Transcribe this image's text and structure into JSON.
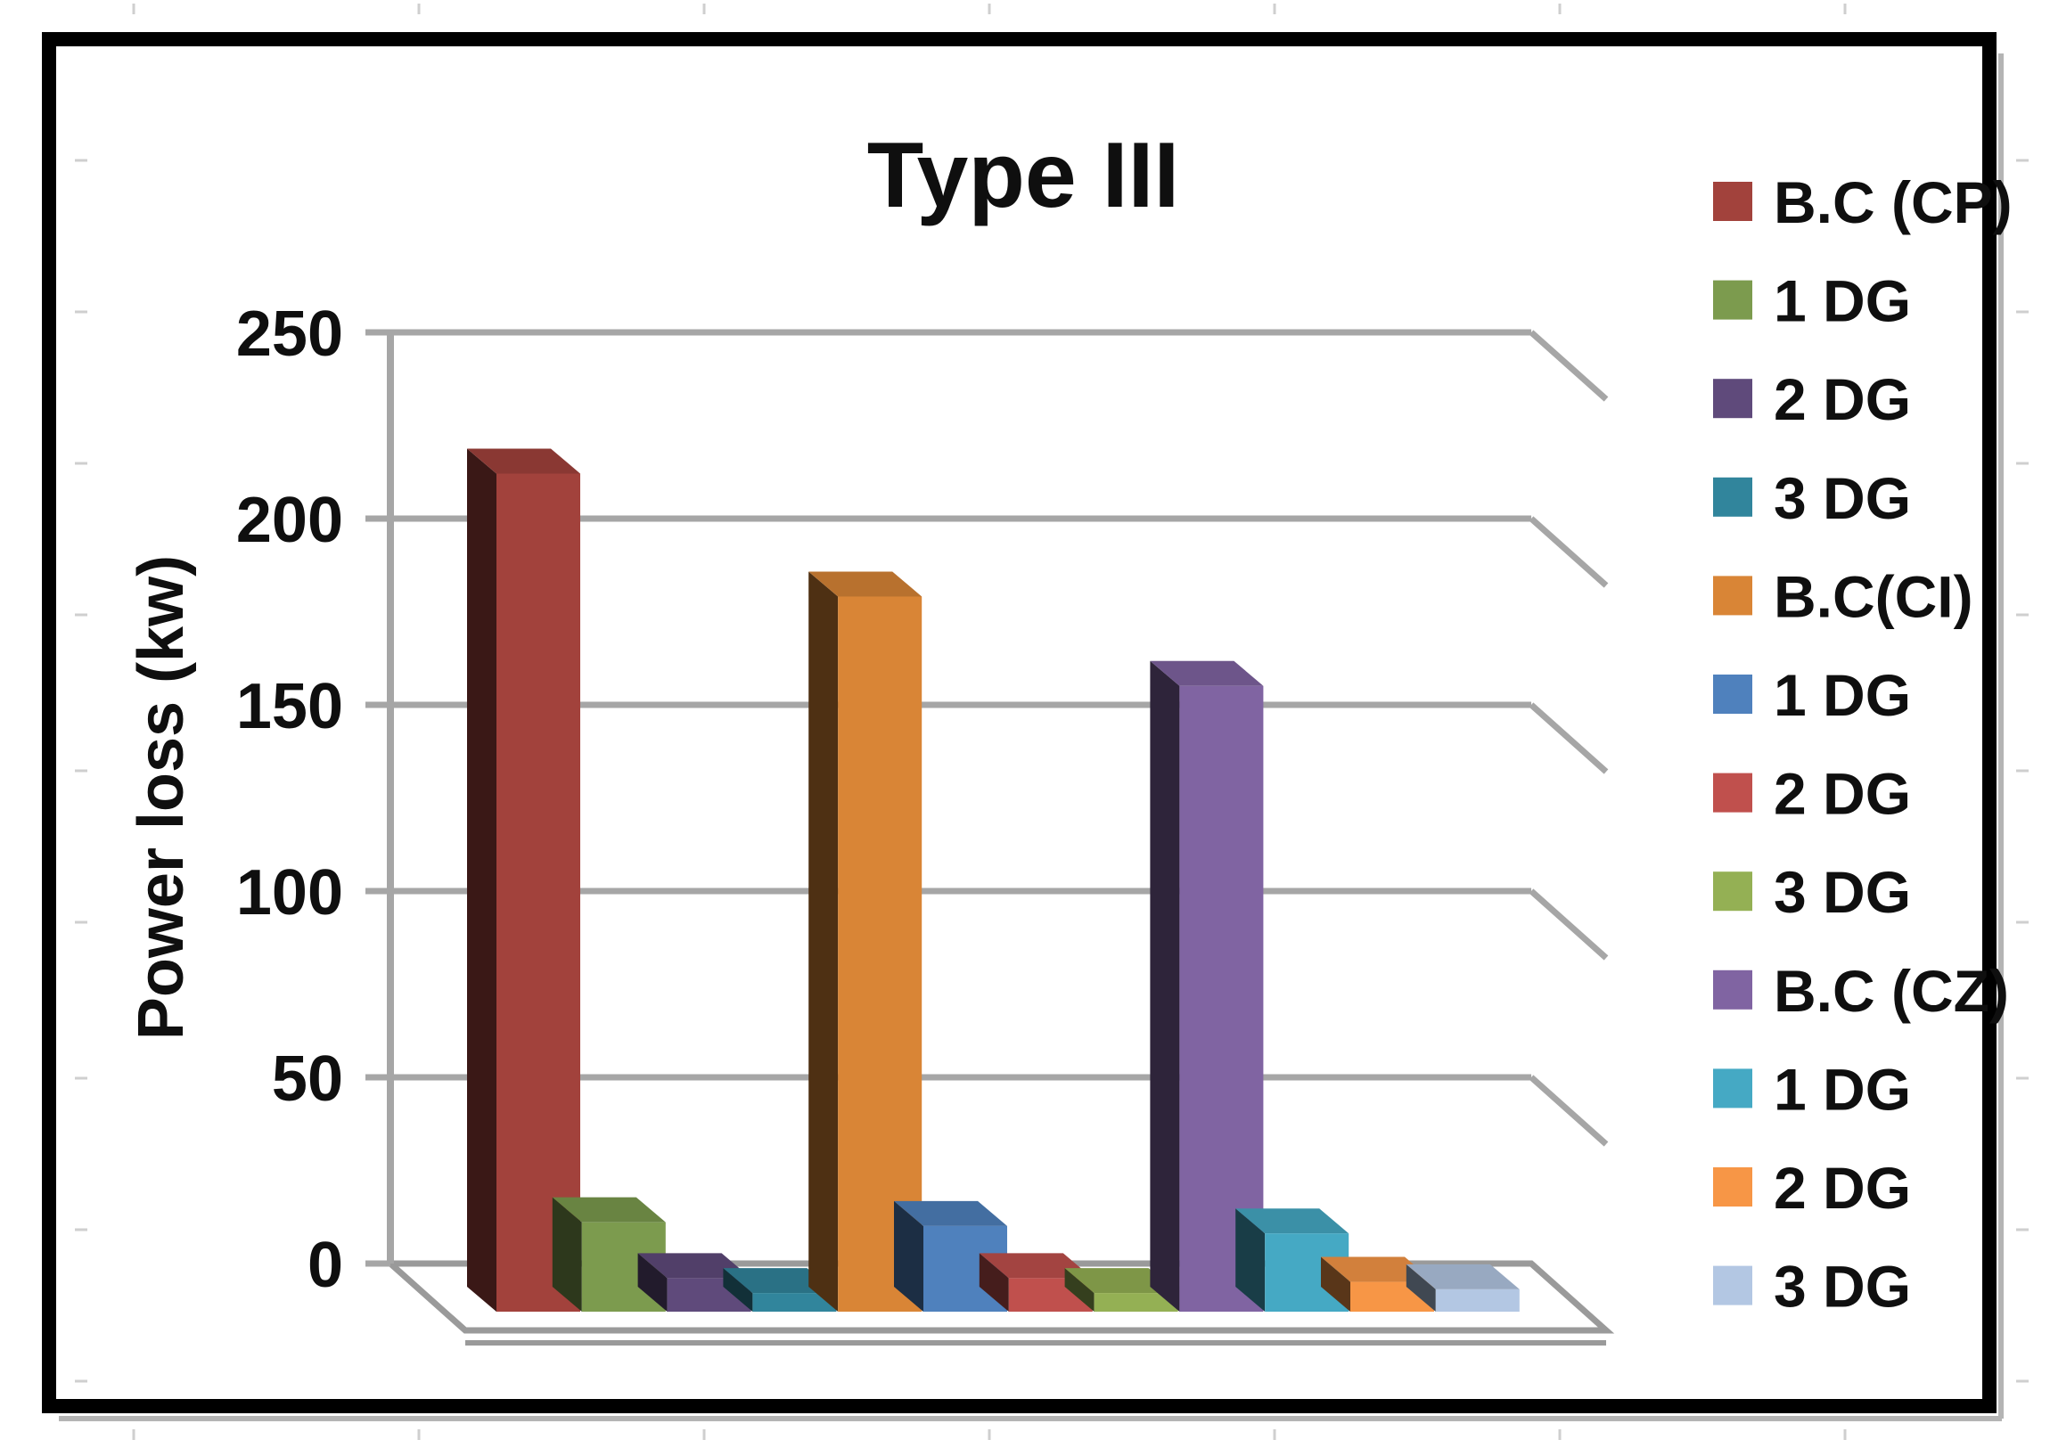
{
  "chart_data": {
    "type": "bar",
    "projection": "3d",
    "title": "Type III",
    "xlabel": "",
    "ylabel": "Power loss (kw)",
    "ylim": [
      0,
      250
    ],
    "ytick_step": 50,
    "ytick_labels": [
      "250",
      "200",
      "150",
      "100",
      "50",
      "0"
    ],
    "grid": true,
    "legend_position": "right-outside",
    "groups": [
      "CP",
      "CI",
      "CZ"
    ],
    "bars": [
      {
        "label": "B.C (CP)",
        "group": "CP",
        "value": 225,
        "color": "#A2423C"
      },
      {
        "label": "1 DG",
        "group": "CP",
        "value": 24,
        "color": "#7C9B4E"
      },
      {
        "label": "2 DG",
        "group": "CP",
        "value": 9,
        "color": "#5F4A7B"
      },
      {
        "label": "3 DG",
        "group": "CP",
        "value": 5,
        "color": "#31859C"
      },
      {
        "label": "B.C(CI)",
        "group": "CI",
        "value": 192,
        "color": "#D98536"
      },
      {
        "label": "1 DG",
        "group": "CI",
        "value": 23,
        "color": "#4F81BD"
      },
      {
        "label": "2 DG",
        "group": "CI",
        "value": 9,
        "color": "#C0504D"
      },
      {
        "label": "3 DG",
        "group": "CI",
        "value": 5,
        "color": "#94B054"
      },
      {
        "label": "B.C (CZ)",
        "group": "CZ",
        "value": 168,
        "color": "#8064A2"
      },
      {
        "label": "1 DG",
        "group": "CZ",
        "value": 21,
        "color": "#45A9C4"
      },
      {
        "label": "2 DG",
        "group": "CZ",
        "value": 8,
        "color": "#F79646"
      },
      {
        "label": "3 DG",
        "group": "CZ",
        "value": 6,
        "color": "#B3C7E3"
      }
    ]
  },
  "frame": {
    "border_color": "#000000",
    "grid_color": "#A6A6A6",
    "shadow_color": "#b4b4b4"
  }
}
